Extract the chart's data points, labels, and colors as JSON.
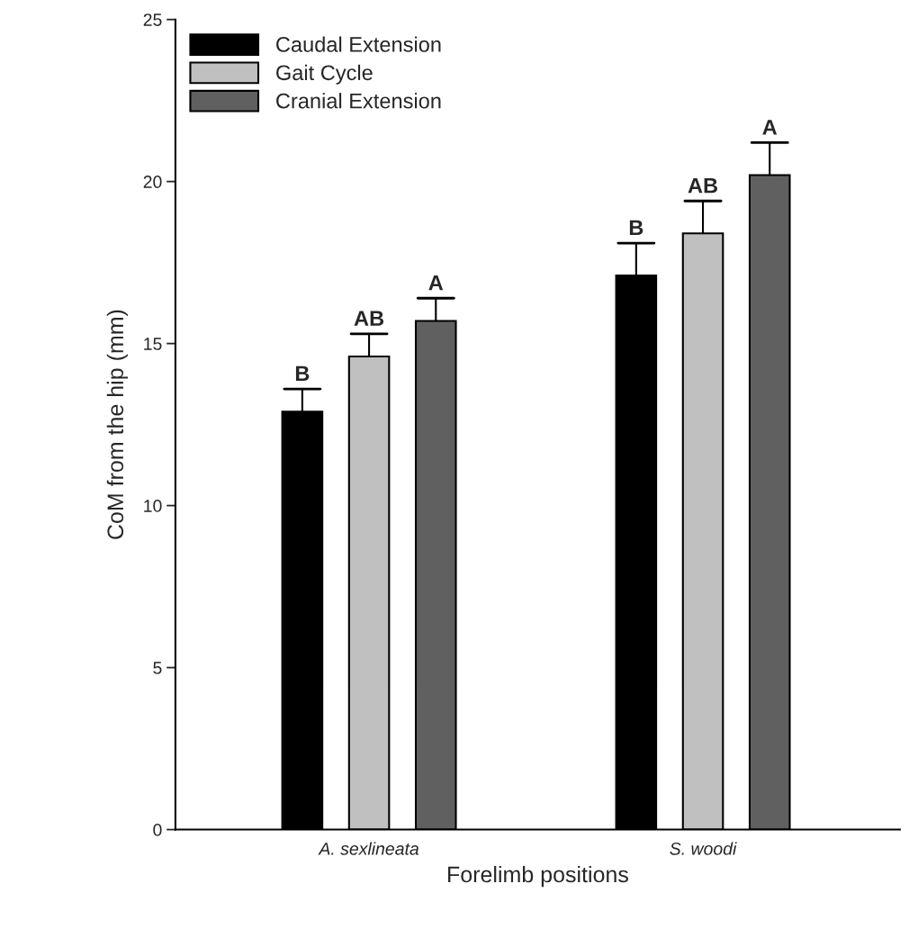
{
  "chart_data": {
    "type": "bar",
    "xlabel": "Forelimb positions",
    "ylabel": "CoM from the hip (mm)",
    "categories": [
      "A. sexlineata",
      "S. woodi"
    ],
    "series": [
      {
        "name": "Caudal Extension",
        "color": "#000000",
        "values": [
          12.9,
          17.1
        ],
        "errors": [
          [
            12.9,
            13.6
          ],
          [
            17.1,
            18.1
          ]
        ],
        "value_labels": [
          "B",
          "B"
        ]
      },
      {
        "name": "Gait Cycle",
        "color": "#c0c0c0",
        "values": [
          14.6,
          18.4
        ],
        "errors": [
          [
            14.6,
            15.3
          ],
          [
            18.4,
            19.4
          ]
        ],
        "value_labels": [
          "AB",
          "AB"
        ]
      },
      {
        "name": "Cranial Extension",
        "color": "#606060",
        "values": [
          15.7,
          20.2
        ],
        "errors": [
          [
            15.7,
            16.4
          ],
          [
            20.2,
            21.2
          ]
        ],
        "value_labels": [
          "A",
          "A"
        ]
      }
    ],
    "ylim": [
      0,
      25
    ],
    "yticks": [
      0,
      5,
      10,
      15,
      20,
      25
    ],
    "grid": false,
    "legend": "top left"
  }
}
